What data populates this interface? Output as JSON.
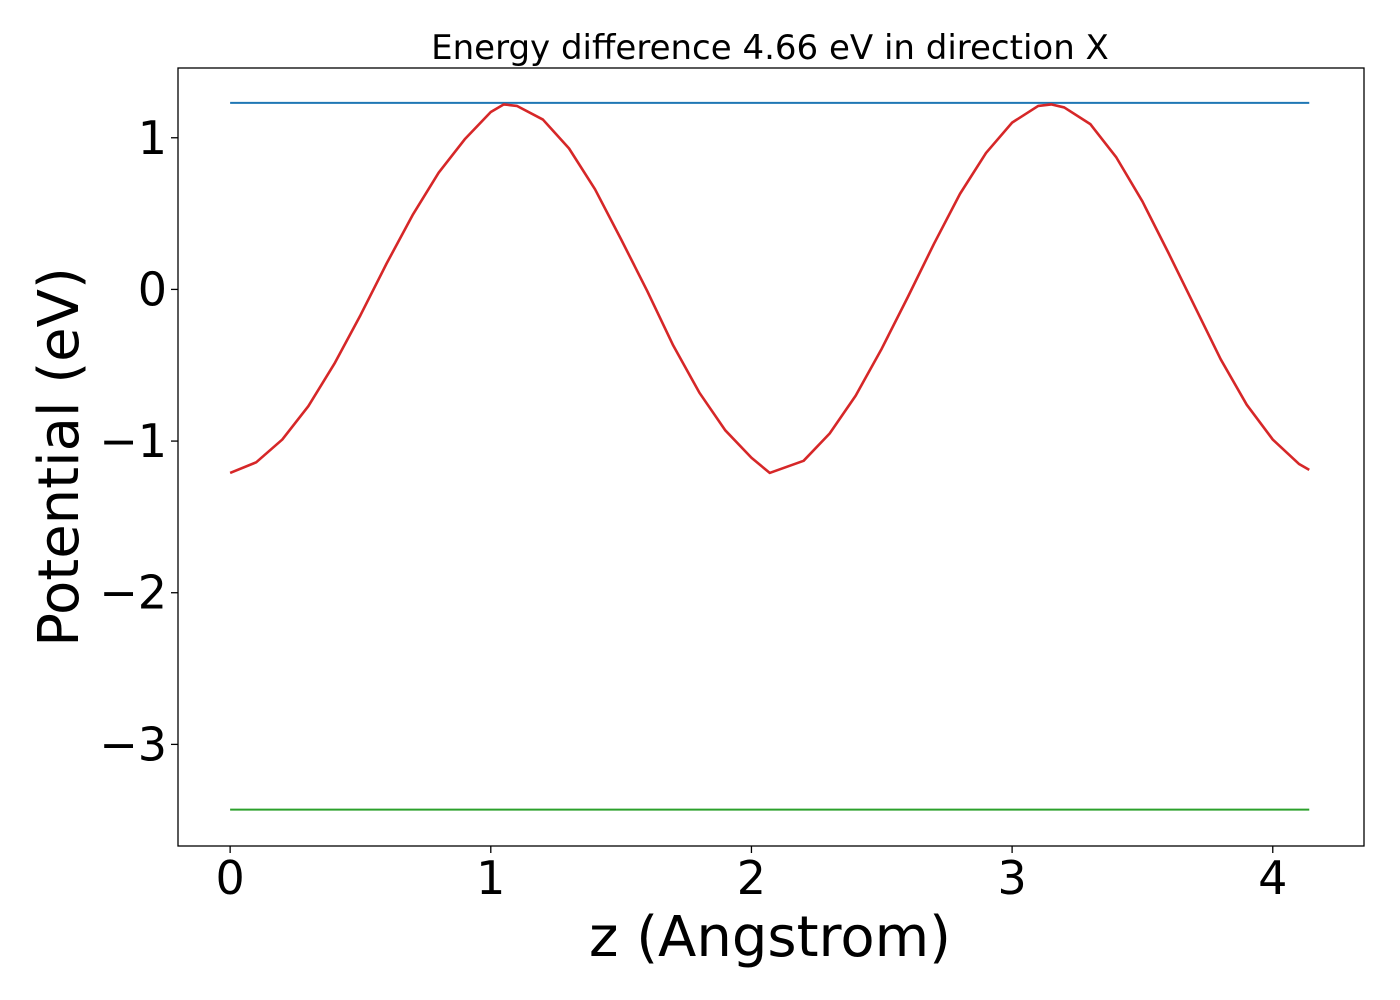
{
  "chart_data": {
    "type": "line",
    "title": "Energy difference 4.66 eV in direction X",
    "xlabel": "z (Angstrom)",
    "ylabel": "Potential (eV)",
    "xlim": [
      -0.2,
      4.35
    ],
    "ylim": [
      -3.67,
      1.46
    ],
    "x_ticks": [
      0,
      1,
      2,
      3,
      4
    ],
    "x_tick_labels": [
      "0",
      "1",
      "2",
      "3",
      "4"
    ],
    "y_ticks": [
      1,
      0,
      -1,
      -2,
      -3
    ],
    "y_tick_labels": [
      "1",
      "0",
      "−1",
      "−2",
      "−3"
    ],
    "grid": false,
    "legend": "none",
    "series": [
      {
        "color": "#1f77b4",
        "style": "line",
        "x": [
          0,
          4.14
        ],
        "y": [
          1.23,
          1.23
        ]
      },
      {
        "color": "#2ca02c",
        "style": "line",
        "x": [
          0,
          4.14
        ],
        "y": [
          -3.43,
          -3.43
        ]
      },
      {
        "color": "#d62728",
        "style": "line",
        "x": [
          0,
          0.1,
          0.2,
          0.3,
          0.4,
          0.5,
          0.6,
          0.7,
          0.8,
          0.9,
          1.0,
          1.05,
          1.1,
          1.2,
          1.3,
          1.4,
          1.5,
          1.6,
          1.7,
          1.8,
          1.9,
          2.0,
          2.07,
          2.2,
          2.3,
          2.4,
          2.5,
          2.6,
          2.7,
          2.8,
          2.9,
          3.0,
          3.1,
          3.15,
          3.2,
          3.3,
          3.4,
          3.5,
          3.6,
          3.7,
          3.8,
          3.9,
          4.0,
          4.1,
          4.14
        ],
        "y": [
          -1.21,
          -1.14,
          -0.99,
          -0.77,
          -0.49,
          -0.17,
          0.17,
          0.49,
          0.77,
          0.99,
          1.17,
          1.22,
          1.21,
          1.12,
          0.93,
          0.66,
          0.33,
          -0.01,
          -0.37,
          -0.68,
          -0.93,
          -1.11,
          -1.21,
          -1.13,
          -0.95,
          -0.7,
          -0.39,
          -0.05,
          0.3,
          0.63,
          0.9,
          1.1,
          1.21,
          1.22,
          1.2,
          1.09,
          0.87,
          0.58,
          0.24,
          -0.11,
          -0.46,
          -0.76,
          -0.99,
          -1.15,
          -1.19
        ]
      }
    ]
  }
}
